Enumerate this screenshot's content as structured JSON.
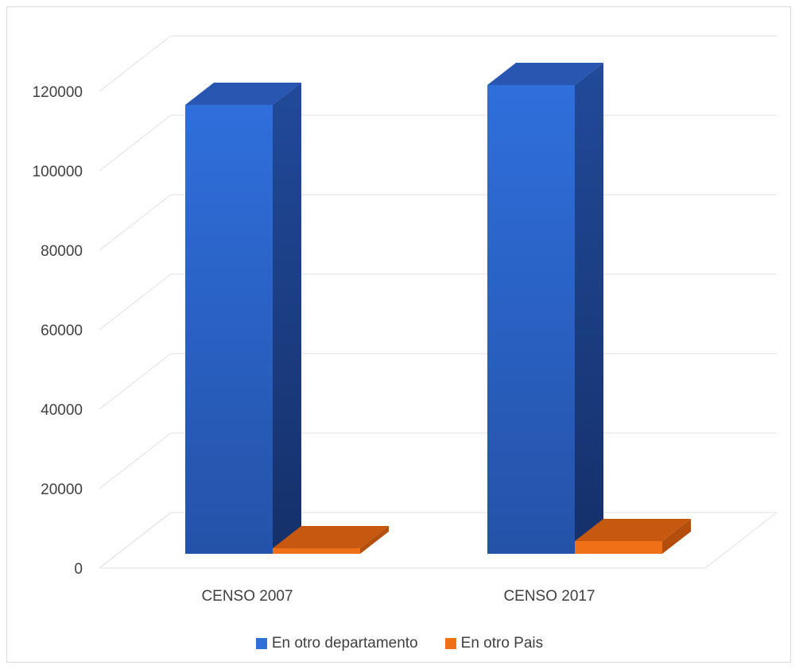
{
  "chart_data": {
    "type": "bar",
    "style": "3d-column",
    "title": "",
    "xlabel": "",
    "ylabel": "",
    "categories": [
      "CENSO 2007",
      "CENSO 2017"
    ],
    "ylim": [
      0,
      120000
    ],
    "yticks": [
      "0",
      "20000",
      "40000",
      "60000",
      "80000",
      "100000",
      "120000"
    ],
    "grid": true,
    "legend_position": "bottom",
    "series": [
      {
        "name": "En otro departamento",
        "values": [
          113000,
          118000
        ],
        "color": "#2f6fd8"
      },
      {
        "name": "En otro Pais",
        "values": [
          1400,
          3200
        ],
        "color": "#f07018"
      }
    ]
  }
}
